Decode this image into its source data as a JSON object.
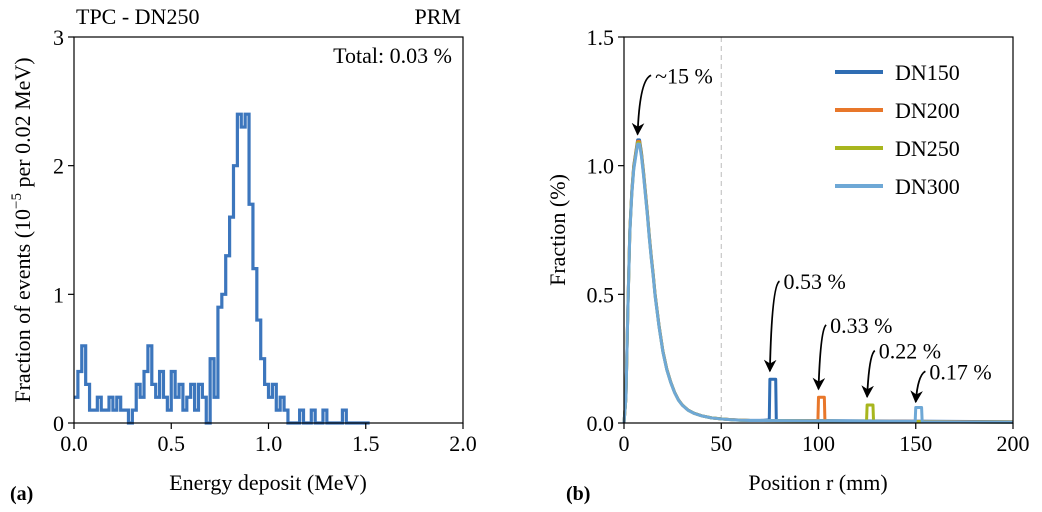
{
  "panels": {
    "a": {
      "label": "(a)"
    },
    "b": {
      "label": "(b)"
    }
  },
  "colors": {
    "DN150": "#2f6db3",
    "DN200": "#e8772a",
    "DN250": "#a8b61e",
    "DN300": "#6ea8d6",
    "hist_a": "#3c76bd",
    "guide": "#bbbbbb",
    "axis": "#000000"
  },
  "chart_data": [
    {
      "type": "histogram",
      "title_left": "TPC - DN250",
      "title_right": "PRM",
      "annotation": "Total: 0.03 %",
      "xlabel": "Energy deposit (MeV)",
      "ylabel_pre": "Fraction of events (10",
      "ylabel_sup": "−5",
      "ylabel_post": " per 0.02 MeV)",
      "xlim": [
        0,
        2.0
      ],
      "ylim": [
        0,
        3
      ],
      "xticks": [
        0.0,
        0.5,
        1.0,
        1.5,
        2.0
      ],
      "xtick_labels": [
        "0.0",
        "0.5",
        "1.0",
        "1.5",
        "2.0"
      ],
      "yticks": [
        0,
        1,
        2,
        3
      ],
      "ytick_labels": [
        "0",
        "1",
        "2",
        "3"
      ],
      "bin_width": 0.02,
      "bins": [
        [
          0.0,
          0.2
        ],
        [
          0.02,
          0.4
        ],
        [
          0.04,
          0.6
        ],
        [
          0.06,
          0.3
        ],
        [
          0.08,
          0.1
        ],
        [
          0.1,
          0.1
        ],
        [
          0.12,
          0.2
        ],
        [
          0.14,
          0.1
        ],
        [
          0.16,
          0.1
        ],
        [
          0.18,
          0.2
        ],
        [
          0.2,
          0.1
        ],
        [
          0.22,
          0.2
        ],
        [
          0.24,
          0.1
        ],
        [
          0.26,
          0.1
        ],
        [
          0.28,
          0.0
        ],
        [
          0.3,
          0.1
        ],
        [
          0.32,
          0.3
        ],
        [
          0.34,
          0.2
        ],
        [
          0.36,
          0.4
        ],
        [
          0.38,
          0.6
        ],
        [
          0.4,
          0.3
        ],
        [
          0.42,
          0.2
        ],
        [
          0.44,
          0.4
        ],
        [
          0.46,
          0.2
        ],
        [
          0.48,
          0.1
        ],
        [
          0.5,
          0.4
        ],
        [
          0.52,
          0.2
        ],
        [
          0.54,
          0.3
        ],
        [
          0.56,
          0.1
        ],
        [
          0.58,
          0.2
        ],
        [
          0.6,
          0.3
        ],
        [
          0.62,
          0.1
        ],
        [
          0.64,
          0.3
        ],
        [
          0.66,
          0.2
        ],
        [
          0.68,
          0.0
        ],
        [
          0.7,
          0.5
        ],
        [
          0.72,
          0.2
        ],
        [
          0.74,
          0.9
        ],
        [
          0.76,
          1.0
        ],
        [
          0.78,
          1.3
        ],
        [
          0.8,
          1.6
        ],
        [
          0.82,
          2.0
        ],
        [
          0.84,
          2.4
        ],
        [
          0.86,
          2.3
        ],
        [
          0.88,
          2.4
        ],
        [
          0.9,
          1.7
        ],
        [
          0.92,
          1.2
        ],
        [
          0.94,
          0.8
        ],
        [
          0.96,
          0.5
        ],
        [
          0.98,
          0.3
        ],
        [
          1.0,
          0.2
        ],
        [
          1.02,
          0.3
        ],
        [
          1.04,
          0.1
        ],
        [
          1.06,
          0.2
        ],
        [
          1.08,
          0.1
        ],
        [
          1.1,
          0.0
        ],
        [
          1.12,
          0.0
        ],
        [
          1.14,
          0.0
        ],
        [
          1.16,
          0.1
        ],
        [
          1.18,
          0.0
        ],
        [
          1.2,
          0.0
        ],
        [
          1.22,
          0.1
        ],
        [
          1.24,
          0.0
        ],
        [
          1.26,
          0.0
        ],
        [
          1.28,
          0.1
        ],
        [
          1.3,
          0.0
        ],
        [
          1.32,
          0.0
        ],
        [
          1.34,
          0.0
        ],
        [
          1.36,
          0.0
        ],
        [
          1.38,
          0.1
        ],
        [
          1.4,
          0.0
        ],
        [
          1.42,
          0.0
        ],
        [
          1.44,
          0.0
        ],
        [
          1.46,
          0.0
        ],
        [
          1.48,
          0.0
        ],
        [
          1.5,
          0.0
        ]
      ]
    },
    {
      "type": "line",
      "xlabel": "Position r (mm)",
      "ylabel": "Fraction (%)",
      "xlim": [
        0,
        200
      ],
      "ylim": [
        0,
        1.5
      ],
      "xticks": [
        0,
        50,
        100,
        150,
        200
      ],
      "xtick_labels": [
        "0",
        "50",
        "100",
        "150",
        "200"
      ],
      "yticks": [
        0.0,
        0.5,
        1.0,
        1.5
      ],
      "ytick_labels": [
        "0.0",
        "0.5",
        "1.0",
        "1.5"
      ],
      "vline_x": 50,
      "legend_position": "top-right",
      "main_curve": [
        [
          0,
          0.0
        ],
        [
          1,
          0.1
        ],
        [
          2,
          0.45
        ],
        [
          3,
          0.75
        ],
        [
          4,
          0.9
        ],
        [
          5,
          1.0
        ],
        [
          6,
          1.05
        ],
        [
          7,
          1.1
        ],
        [
          8,
          1.1
        ],
        [
          9,
          1.05
        ],
        [
          10,
          0.98
        ],
        [
          11,
          0.9
        ],
        [
          12,
          0.82
        ],
        [
          13,
          0.73
        ],
        [
          14,
          0.65
        ],
        [
          15,
          0.58
        ],
        [
          16,
          0.5
        ],
        [
          17,
          0.44
        ],
        [
          18,
          0.38
        ],
        [
          19,
          0.33
        ],
        [
          20,
          0.28
        ],
        [
          22,
          0.21
        ],
        [
          24,
          0.16
        ],
        [
          26,
          0.12
        ],
        [
          28,
          0.09
        ],
        [
          30,
          0.07
        ],
        [
          33,
          0.05
        ],
        [
          36,
          0.038
        ],
        [
          40,
          0.028
        ],
        [
          45,
          0.02
        ],
        [
          50,
          0.016
        ],
        [
          55,
          0.013
        ],
        [
          60,
          0.011
        ],
        [
          65,
          0.01
        ],
        [
          70,
          0.01
        ]
      ],
      "series": [
        {
          "name": "DN150",
          "wall_r": 75,
          "peak": 0.17,
          "wall_end": 78,
          "tail": 0.01
        },
        {
          "name": "DN200",
          "wall_r": 100,
          "peak": 0.1,
          "wall_end": 103,
          "tail": 0.008
        },
        {
          "name": "DN250",
          "wall_r": 125,
          "peak": 0.07,
          "wall_end": 128,
          "tail": 0.006
        },
        {
          "name": "DN300",
          "wall_r": 150,
          "peak": 0.06,
          "wall_end": 153,
          "tail": 0.005
        }
      ],
      "annotations": [
        {
          "text": "~15 %",
          "point": [
            7,
            1.11
          ],
          "text_pos": [
            16,
            1.32
          ]
        },
        {
          "text": "0.53 %",
          "point": [
            75,
            0.19
          ],
          "text_pos": [
            82,
            0.52
          ]
        },
        {
          "text": "0.33 %",
          "point": [
            100,
            0.12
          ],
          "text_pos": [
            106,
            0.35
          ]
        },
        {
          "text": "0.22 %",
          "point": [
            125,
            0.09
          ],
          "text_pos": [
            131,
            0.25
          ]
        },
        {
          "text": "0.17 %",
          "point": [
            150,
            0.07
          ],
          "text_pos": [
            157,
            0.17
          ]
        }
      ]
    }
  ]
}
